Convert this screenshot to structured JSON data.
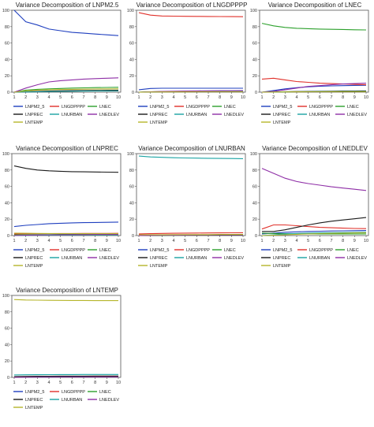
{
  "chart_data": [
    {
      "type": "line",
      "title": "Variance Decomposition of LNPM2.5",
      "x": [
        1,
        2,
        3,
        4,
        5,
        6,
        7,
        8,
        9,
        10
      ],
      "ylim": [
        0,
        100
      ],
      "yticks": [
        0,
        20,
        40,
        60,
        80,
        100
      ],
      "series": [
        {
          "name": "LNPM2_5",
          "color": "#1f3fbf",
          "values": [
            100,
            86,
            82,
            77,
            75,
            73,
            72,
            71,
            70,
            69
          ]
        },
        {
          "name": "LNGDPPPP",
          "color": "#e0302a",
          "values": [
            0,
            0.5,
            0.8,
            1.0,
            1.2,
            1.3,
            1.4,
            1.5,
            1.5,
            1.6
          ]
        },
        {
          "name": "LNEC",
          "color": "#2ca02c",
          "values": [
            0,
            2.5,
            3.5,
            4.0,
            4.5,
            5.0,
            5.3,
            5.6,
            5.8,
            6.0
          ]
        },
        {
          "name": "LNPREC",
          "color": "#1a1a1a",
          "values": [
            0,
            0.5,
            1.0,
            1.3,
            1.6,
            1.8,
            2.0,
            2.1,
            2.2,
            2.3
          ]
        },
        {
          "name": "LNURBAN",
          "color": "#1aa3a3",
          "values": [
            0,
            0.3,
            0.5,
            0.8,
            1.0,
            1.2,
            1.3,
            1.4,
            1.5,
            1.6
          ]
        },
        {
          "name": "LNEDLEV",
          "color": "#8e2ea6",
          "values": [
            0,
            5,
            9,
            12.5,
            14,
            15,
            16,
            16.5,
            17,
            17.5
          ]
        },
        {
          "name": "LNTEMP",
          "color": "#b5b52a",
          "values": [
            0,
            1.5,
            2.5,
            3.0,
            3.3,
            3.5,
            3.7,
            3.8,
            3.9,
            4.0
          ]
        }
      ]
    },
    {
      "type": "line",
      "title": "Variance Decomposition of LNGDPPPP",
      "x": [
        1,
        2,
        3,
        4,
        5,
        6,
        7,
        8,
        9,
        10
      ],
      "ylim": [
        0,
        100
      ],
      "yticks": [
        0,
        20,
        40,
        60,
        80,
        100
      ],
      "series": [
        {
          "name": "LNPM2_5",
          "color": "#1f3fbf",
          "values": [
            3,
            4.5,
            4.8,
            4.8,
            4.8,
            4.8,
            4.8,
            4.8,
            4.8,
            4.8
          ]
        },
        {
          "name": "LNGDPPPP",
          "color": "#e0302a",
          "values": [
            97,
            94,
            93,
            92.8,
            92.6,
            92.5,
            92.4,
            92.3,
            92.2,
            92.1
          ]
        },
        {
          "name": "LNEC",
          "color": "#2ca02c",
          "values": [
            0,
            0.5,
            0.8,
            1.0,
            1.1,
            1.2,
            1.3,
            1.3,
            1.4,
            1.4
          ]
        },
        {
          "name": "LNPREC",
          "color": "#1a1a1a",
          "values": [
            0,
            0.3,
            0.5,
            0.6,
            0.7,
            0.8,
            0.8,
            0.9,
            0.9,
            0.9
          ]
        },
        {
          "name": "LNURBAN",
          "color": "#1aa3a3",
          "values": [
            0,
            0.3,
            0.5,
            0.6,
            0.7,
            0.7,
            0.8,
            0.8,
            0.8,
            0.8
          ]
        },
        {
          "name": "LNEDLEV",
          "color": "#8e2ea6",
          "values": [
            0,
            0.5,
            1.0,
            1.2,
            1.4,
            1.5,
            1.6,
            1.7,
            1.7,
            1.8
          ]
        },
        {
          "name": "LNTEMP",
          "color": "#b5b52a",
          "values": [
            0,
            0.2,
            0.3,
            0.4,
            0.4,
            0.5,
            0.5,
            0.5,
            0.5,
            0.5
          ]
        }
      ]
    },
    {
      "type": "line",
      "title": "Variance Decomposition of LNEC",
      "x": [
        1,
        2,
        3,
        4,
        5,
        6,
        7,
        8,
        9,
        10
      ],
      "ylim": [
        0,
        100
      ],
      "yticks": [
        0,
        20,
        40,
        60,
        80,
        100
      ],
      "series": [
        {
          "name": "LNPM2_5",
          "color": "#1f3fbf",
          "values": [
            0,
            2,
            4,
            5.5,
            6.5,
            7.2,
            7.7,
            8.0,
            8.3,
            8.5
          ]
        },
        {
          "name": "LNGDPPPP",
          "color": "#e0302a",
          "values": [
            16,
            17,
            15,
            13,
            12,
            11,
            10.5,
            10,
            9.5,
            9
          ]
        },
        {
          "name": "LNEC",
          "color": "#2ca02c",
          "values": [
            84,
            81,
            79,
            78,
            77.5,
            77,
            76.7,
            76.5,
            76.2,
            76
          ]
        },
        {
          "name": "LNPREC",
          "color": "#1a1a1a",
          "values": [
            0,
            0.3,
            0.6,
            0.8,
            1.0,
            1.1,
            1.2,
            1.3,
            1.4,
            1.5
          ]
        },
        {
          "name": "LNURBAN",
          "color": "#1aa3a3",
          "values": [
            0,
            0.2,
            0.4,
            0.5,
            0.6,
            0.7,
            0.7,
            0.8,
            0.8,
            0.8
          ]
        },
        {
          "name": "LNEDLEV",
          "color": "#8e2ea6",
          "values": [
            0,
            1,
            3,
            5,
            7,
            8,
            9,
            10,
            10.5,
            11
          ]
        },
        {
          "name": "LNTEMP",
          "color": "#b5b52a",
          "values": [
            0,
            0.2,
            0.3,
            0.4,
            0.5,
            0.5,
            0.6,
            0.6,
            0.6,
            0.6
          ]
        }
      ]
    },
    {
      "type": "line",
      "title": "Variance Decomposition of LNPREC",
      "x": [
        1,
        2,
        3,
        4,
        5,
        6,
        7,
        8,
        9,
        10
      ],
      "ylim": [
        0,
        100
      ],
      "yticks": [
        0,
        20,
        40,
        60,
        80,
        100
      ],
      "series": [
        {
          "name": "LNPM2_5",
          "color": "#1f3fbf",
          "values": [
            11,
            12.5,
            13.5,
            14.5,
            15,
            15.5,
            15.8,
            16,
            16.2,
            16.4
          ]
        },
        {
          "name": "LNGDPPPP",
          "color": "#e0302a",
          "values": [
            2,
            2.2,
            2.3,
            2.4,
            2.5,
            2.5,
            2.6,
            2.6,
            2.6,
            2.7
          ]
        },
        {
          "name": "LNEC",
          "color": "#2ca02c",
          "values": [
            1,
            1.1,
            1.2,
            1.2,
            1.3,
            1.3,
            1.3,
            1.3,
            1.4,
            1.4
          ]
        },
        {
          "name": "LNPREC",
          "color": "#1a1a1a",
          "values": [
            85,
            82,
            80,
            79,
            78.5,
            78,
            77.8,
            77.6,
            77.4,
            77.2
          ]
        },
        {
          "name": "LNURBAN",
          "color": "#1aa3a3",
          "values": [
            0,
            0.3,
            0.5,
            0.6,
            0.7,
            0.7,
            0.8,
            0.8,
            0.8,
            0.8
          ]
        },
        {
          "name": "LNEDLEV",
          "color": "#8e2ea6",
          "values": [
            0,
            0.5,
            0.8,
            1.0,
            1.1,
            1.2,
            1.2,
            1.3,
            1.3,
            1.3
          ]
        },
        {
          "name": "LNTEMP",
          "color": "#b5b52a",
          "values": [
            3,
            2.8,
            2.6,
            2.5,
            2.4,
            2.4,
            2.3,
            2.3,
            2.3,
            2.3
          ]
        }
      ]
    },
    {
      "type": "line",
      "title": "Variance Decomposition of LNURBAN",
      "x": [
        1,
        2,
        3,
        4,
        5,
        6,
        7,
        8,
        9,
        10
      ],
      "ylim": [
        0,
        100
      ],
      "yticks": [
        0,
        20,
        40,
        60,
        80,
        100
      ],
      "series": [
        {
          "name": "LNPM2_5",
          "color": "#1f3fbf",
          "values": [
            0,
            0.3,
            0.5,
            0.6,
            0.7,
            0.8,
            0.8,
            0.9,
            0.9,
            0.9
          ]
        },
        {
          "name": "LNGDPPPP",
          "color": "#e0302a",
          "values": [
            2,
            2.3,
            2.6,
            2.8,
            3.0,
            3.1,
            3.2,
            3.3,
            3.4,
            3.5
          ]
        },
        {
          "name": "LNEC",
          "color": "#2ca02c",
          "values": [
            0,
            0.2,
            0.3,
            0.4,
            0.5,
            0.5,
            0.6,
            0.6,
            0.6,
            0.6
          ]
        },
        {
          "name": "LNPREC",
          "color": "#1a1a1a",
          "values": [
            0,
            0.2,
            0.4,
            0.5,
            0.6,
            0.6,
            0.7,
            0.7,
            0.7,
            0.7
          ]
        },
        {
          "name": "LNURBAN",
          "color": "#1aa3a3",
          "values": [
            97,
            96,
            95.5,
            95,
            94.7,
            94.5,
            94.3,
            94.1,
            94,
            93.8
          ]
        },
        {
          "name": "LNEDLEV",
          "color": "#8e2ea6",
          "values": [
            0,
            0.3,
            0.5,
            0.6,
            0.7,
            0.8,
            0.8,
            0.9,
            0.9,
            0.9
          ]
        },
        {
          "name": "LNTEMP",
          "color": "#b5b52a",
          "values": [
            1,
            1.1,
            1.1,
            1.2,
            1.2,
            1.2,
            1.2,
            1.3,
            1.3,
            1.3
          ]
        }
      ]
    },
    {
      "type": "line",
      "title": "Variance Decomposition of LNEDLEV",
      "x": [
        1,
        2,
        3,
        4,
        5,
        6,
        7,
        8,
        9,
        10
      ],
      "ylim": [
        0,
        100
      ],
      "yticks": [
        0,
        20,
        40,
        60,
        80,
        100
      ],
      "series": [
        {
          "name": "LNPM2_5",
          "color": "#1f3fbf",
          "values": [
            2,
            3,
            4,
            4.5,
            5,
            5.3,
            5.6,
            5.8,
            6,
            6.2
          ]
        },
        {
          "name": "LNGDPPPP",
          "color": "#e0302a",
          "values": [
            8,
            13,
            13,
            12,
            11,
            10,
            9.5,
            9,
            8.7,
            8.5
          ]
        },
        {
          "name": "LNEC",
          "color": "#2ca02c",
          "values": [
            3,
            2.5,
            2.3,
            2.2,
            2.1,
            2.0,
            2.0,
            2.0,
            2.0,
            2.0
          ]
        },
        {
          "name": "LNPREC",
          "color": "#1a1a1a",
          "values": [
            5,
            5,
            7,
            10,
            13,
            15.5,
            17.5,
            19,
            20.5,
            22
          ]
        },
        {
          "name": "LNURBAN",
          "color": "#1aa3a3",
          "values": [
            0,
            1,
            2,
            2.5,
            3,
            3.3,
            3.5,
            3.7,
            3.8,
            4.0
          ]
        },
        {
          "name": "LNEDLEV",
          "color": "#8e2ea6",
          "values": [
            82,
            76,
            70,
            66,
            63.5,
            61.5,
            59.5,
            58,
            56.5,
            55
          ]
        },
        {
          "name": "LNTEMP",
          "color": "#b5b52a",
          "values": [
            0,
            0.5,
            1,
            1.5,
            2,
            2.4,
            2.7,
            3.0,
            3.3,
            3.5
          ]
        }
      ]
    },
    {
      "type": "line",
      "title": "Variance Decomposition of LNTEMP",
      "x": [
        1,
        2,
        3,
        4,
        5,
        6,
        7,
        8,
        9,
        10
      ],
      "ylim": [
        0,
        100
      ],
      "yticks": [
        0,
        20,
        40,
        60,
        80,
        100
      ],
      "series": [
        {
          "name": "LNPM2_5",
          "color": "#1f3fbf",
          "values": [
            0,
            0.2,
            0.3,
            0.4,
            0.5,
            0.5,
            0.6,
            0.6,
            0.6,
            0.6
          ]
        },
        {
          "name": "LNGDPPPP",
          "color": "#e0302a",
          "values": [
            1,
            1.1,
            1.2,
            1.2,
            1.3,
            1.3,
            1.3,
            1.3,
            1.3,
            1.3
          ]
        },
        {
          "name": "LNEC",
          "color": "#2ca02c",
          "values": [
            0,
            0.2,
            0.2,
            0.3,
            0.3,
            0.3,
            0.3,
            0.3,
            0.3,
            0.3
          ]
        },
        {
          "name": "LNPREC",
          "color": "#1a1a1a",
          "values": [
            1,
            1.2,
            1.3,
            1.4,
            1.5,
            1.5,
            1.5,
            1.6,
            1.6,
            1.6
          ]
        },
        {
          "name": "LNURBAN",
          "color": "#1aa3a3",
          "values": [
            3,
            3.2,
            3.3,
            3.4,
            3.5,
            3.5,
            3.6,
            3.6,
            3.6,
            3.6
          ]
        },
        {
          "name": "LNEDLEV",
          "color": "#8e2ea6",
          "values": [
            0,
            0.2,
            0.3,
            0.3,
            0.4,
            0.4,
            0.4,
            0.4,
            0.4,
            0.4
          ]
        },
        {
          "name": "LNTEMP",
          "color": "#b5b52a",
          "values": [
            95,
            94.4,
            94.2,
            94.0,
            93.9,
            93.8,
            93.8,
            93.7,
            93.7,
            93.7
          ]
        }
      ]
    }
  ]
}
